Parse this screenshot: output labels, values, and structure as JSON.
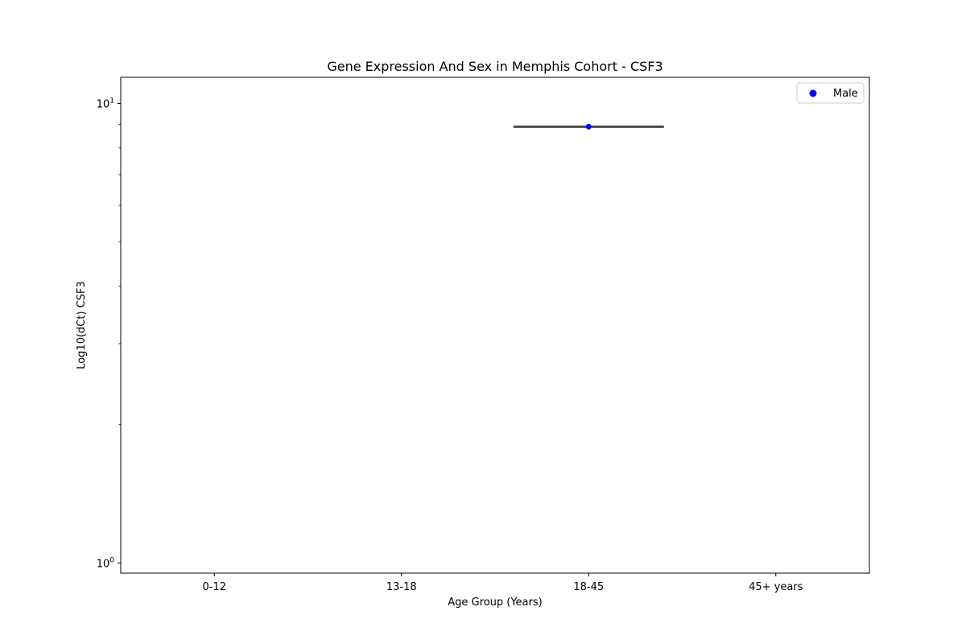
{
  "chart_data": {
    "type": "box",
    "title": "Gene Expression And Sex in Memphis Cohort - CSF3",
    "xlabel": "Age Group (Years)",
    "ylabel": "Log10(dCt) CSF3",
    "categories": [
      "0-12",
      "13-18",
      "18-45",
      "45+ years"
    ],
    "yscale": "log",
    "ylim": [
      0.95,
      11.4
    ],
    "yticks": [
      {
        "value": 1,
        "base": "10",
        "exp": "0"
      },
      {
        "value": 10,
        "base": "10",
        "exp": "1"
      }
    ],
    "legend": {
      "position": "top-right",
      "entries": [
        {
          "name": "Male",
          "color": "#0000ff"
        }
      ]
    },
    "boxes": [
      {
        "category": "18-45",
        "min": 8.9,
        "q1": 8.9,
        "median": 8.9,
        "q3": 8.9,
        "max": 8.9
      }
    ],
    "points": [
      {
        "category": "18-45",
        "series": "Male",
        "y": 8.9
      }
    ],
    "colors": {
      "box_line": "#4d4d4d",
      "male": "#0000ff",
      "axes": "#000000",
      "legend_border": "#cccccc"
    }
  }
}
